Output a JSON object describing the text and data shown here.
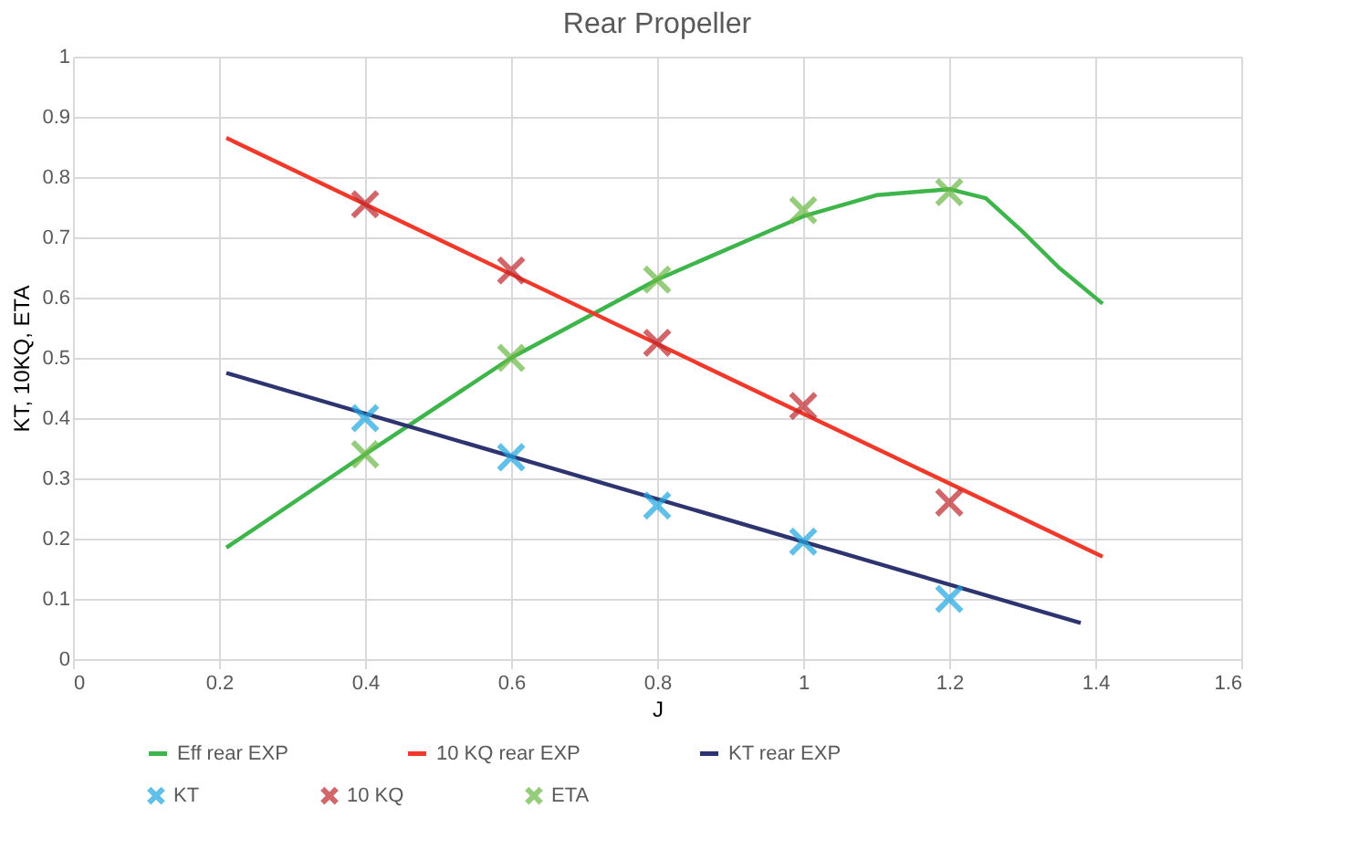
{
  "chart_data": {
    "type": "line",
    "title": "Rear Propeller",
    "xlabel": "J",
    "ylabel": "KT, 10KQ, ETA",
    "xlim": [
      0,
      1.6
    ],
    "xticks": [
      0,
      0.2,
      0.4,
      0.6,
      0.8,
      1,
      1.2,
      1.4,
      1.6
    ],
    "ylim": [
      0,
      1
    ],
    "yticks": [
      0,
      0.1,
      0.2,
      0.3,
      0.4,
      0.5,
      0.6,
      0.7,
      0.8,
      0.9,
      1
    ],
    "grid": true,
    "legend": "bottom",
    "line_style": "solid",
    "series": [
      {
        "name": "Eff rear EXP",
        "marker": "none",
        "color": "#3db54a",
        "x": [
          0.21,
          0.4,
          0.6,
          0.8,
          1.0,
          1.1,
          1.2,
          1.25,
          1.3,
          1.35,
          1.41
        ],
        "values": [
          0.185,
          0.34,
          0.5,
          0.63,
          0.735,
          0.77,
          0.78,
          0.765,
          0.71,
          0.65,
          0.59
        ]
      },
      {
        "name": "10 KQ rear EXP",
        "marker": "none",
        "color": "#f0392b",
        "x": [
          0.21,
          1.41
        ],
        "values": [
          0.865,
          0.17
        ]
      },
      {
        "name": "KT rear EXP",
        "marker": "none",
        "color": "#2e3470",
        "x": [
          0.21,
          1.38
        ],
        "values": [
          0.475,
          0.06
        ]
      },
      {
        "name": "KT",
        "type": "scatter",
        "marker": "cross",
        "color": "#1fa6e0",
        "x": [
          0.4,
          0.6,
          0.8,
          1.0,
          1.2
        ],
        "values": [
          0.4,
          0.335,
          0.255,
          0.195,
          0.1
        ]
      },
      {
        "name": "10 KQ",
        "type": "scatter",
        "marker": "cross",
        "color": "#c0282d",
        "x": [
          0.4,
          0.6,
          0.8,
          1.0,
          1.2
        ],
        "values": [
          0.755,
          0.645,
          0.525,
          0.42,
          0.26
        ]
      },
      {
        "name": "ETA",
        "type": "scatter",
        "marker": "cross",
        "color": "#6bb845",
        "x": [
          0.4,
          0.6,
          0.8,
          1.0,
          1.2
        ],
        "values": [
          0.34,
          0.5,
          0.63,
          0.745,
          0.775
        ]
      }
    ]
  }
}
